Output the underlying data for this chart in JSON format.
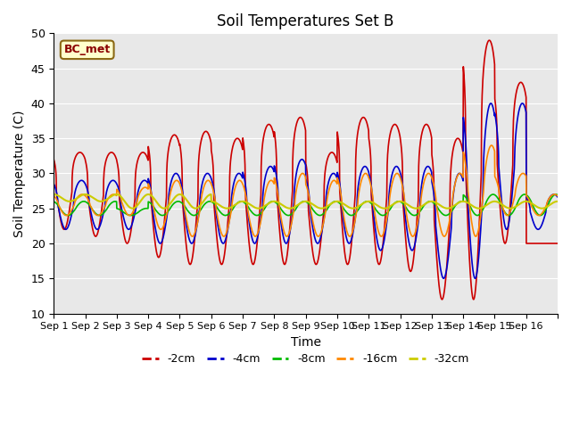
{
  "title": "Soil Temperatures Set B",
  "xlabel": "Time",
  "ylabel": "Soil Temperature (C)",
  "ylim": [
    10,
    50
  ],
  "yticks": [
    10,
    15,
    20,
    25,
    30,
    35,
    40,
    45,
    50
  ],
  "annotation_text": "BC_met",
  "series_labels": [
    "-2cm",
    "-4cm",
    "-8cm",
    "-16cm",
    "-32cm"
  ],
  "series_colors": [
    "#cc0000",
    "#0000cc",
    "#00bb00",
    "#ff8800",
    "#cccc00"
  ],
  "line_widths": [
    1.2,
    1.2,
    1.2,
    1.2,
    1.5
  ],
  "background_color": "#e8e8e8",
  "xtick_labels": [
    "Sep 1",
    "Sep 2",
    "Sep 3",
    "Sep 4",
    "Sep 5",
    "Sep 6",
    "Sep 7",
    "Sep 8",
    "Sep 9",
    "Sep 10",
    "Sep 11",
    "Sep 12",
    "Sep 13",
    "Sep 14",
    "Sep 15",
    "Sep 16"
  ],
  "n_days": 16
}
